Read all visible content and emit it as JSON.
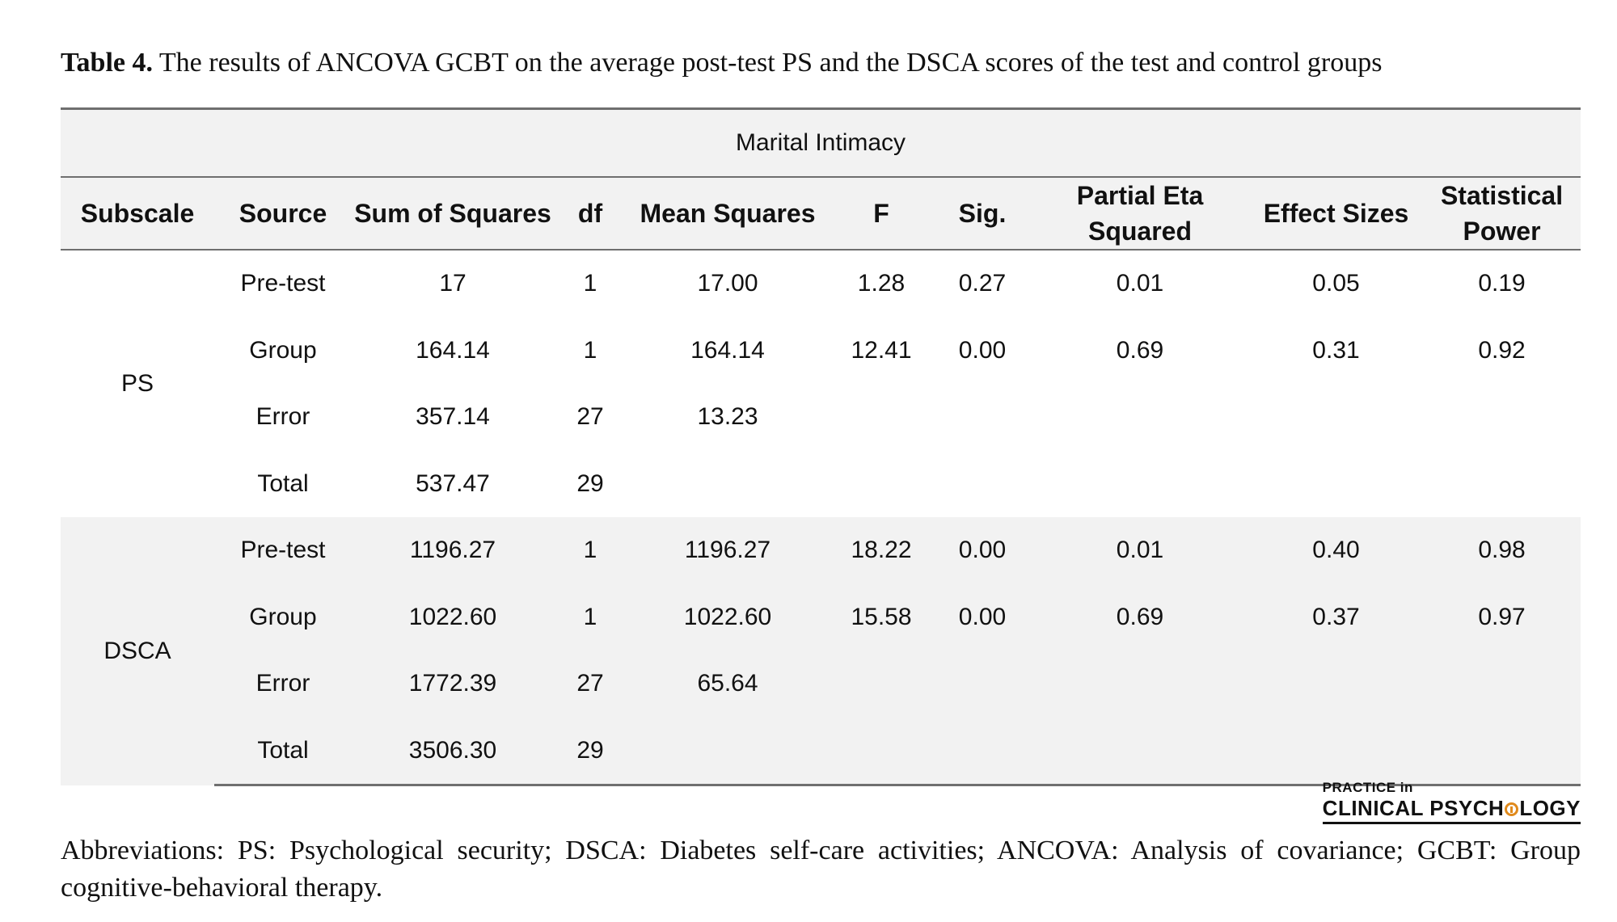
{
  "caption": {
    "label": "Table 4.",
    "text": " The results of ANCOVA GCBT on the average post-test PS and the DSCA scores of the test and control groups"
  },
  "table": {
    "group_title": "Marital Intimacy",
    "headers": {
      "subscale": "Subscale",
      "source": "Source",
      "ss": "Sum of Squares",
      "df": "df",
      "ms": "Mean Squares",
      "f": "F",
      "sig": "Sig.",
      "eta_line1": "Partial Eta",
      "eta_line2": "Squared",
      "es": "Effect Sizes",
      "power_line1": "Statistical",
      "power_line2": "Power"
    },
    "sections": [
      {
        "subscale": "PS",
        "rows": [
          {
            "source": "Pre-test",
            "ss": "17",
            "df": "1",
            "ms": "17.00",
            "f": "1.28",
            "sig": "0.27",
            "eta": "0.01",
            "es": "0.05",
            "power": "0.19"
          },
          {
            "source": "Group",
            "ss": "164.14",
            "df": "1",
            "ms": "164.14",
            "f": "12.41",
            "sig": "0.00",
            "eta": "0.69",
            "es": "0.31",
            "power": "0.92"
          },
          {
            "source": "Error",
            "ss": "357.14",
            "df": "27",
            "ms": "13.23",
            "f": "",
            "sig": "",
            "eta": "",
            "es": "",
            "power": ""
          },
          {
            "source": "Total",
            "ss": "537.47",
            "df": "29",
            "ms": "",
            "f": "",
            "sig": "",
            "eta": "",
            "es": "",
            "power": ""
          }
        ]
      },
      {
        "subscale": "DSCA",
        "rows": [
          {
            "source": "Pre-test",
            "ss": "1196.27",
            "df": "1",
            "ms": "1196.27",
            "f": "18.22",
            "sig": "0.00",
            "eta": "0.01",
            "es": "0.40",
            "power": "0.98"
          },
          {
            "source": "Group",
            "ss": "1022.60",
            "df": "1",
            "ms": "1022.60",
            "f": "15.58",
            "sig": "0.00",
            "eta": "0.69",
            "es": "0.37",
            "power": "0.97"
          },
          {
            "source": "Error",
            "ss": "1772.39",
            "df": "27",
            "ms": "65.64",
            "f": "",
            "sig": "",
            "eta": "",
            "es": "",
            "power": ""
          },
          {
            "source": "Total",
            "ss": "3506.30",
            "df": "29",
            "ms": "",
            "f": "",
            "sig": "",
            "eta": "",
            "es": "",
            "power": ""
          }
        ]
      }
    ]
  },
  "logo": {
    "line1": "PRACTICE in",
    "line2_a": "CLINICAL PSYCH",
    "line2_b": "LOGY"
  },
  "footnote": "Abbreviations: PS: Psychological security; DSCA: Diabetes self-care activities; ANCOVA: Analysis of covariance; GCBT: Group cognitive-behavioral therapy.",
  "colors": {
    "rule": "#6f6f6f",
    "shade": "#f2f2f2",
    "logo_accent": "#e08a1c"
  }
}
